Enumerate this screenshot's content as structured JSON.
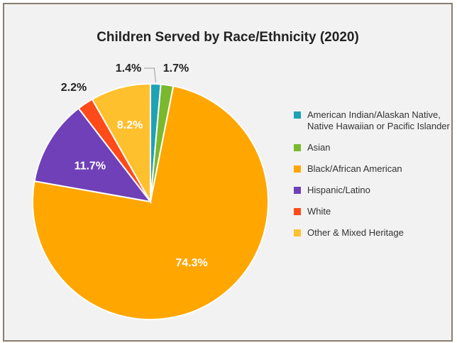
{
  "chart_data": {
    "type": "pie",
    "title": "Children Served by Race/Ethnicity (2020)",
    "slices": [
      {
        "name": "American Indian/Alaskan Native, Native Hawaiian or Pacific Islander",
        "value": 1.4,
        "label": "1.4%",
        "color": "#1ea2b5"
      },
      {
        "name": "Asian",
        "value": 1.7,
        "label": "1.7%",
        "color": "#7ab82e"
      },
      {
        "name": "Black/African American",
        "value": 74.3,
        "label": "74.3%",
        "color": "#ffa600"
      },
      {
        "name": "Hispanic/Latino",
        "value": 11.7,
        "label": "11.7%",
        "color": "#6f40b8"
      },
      {
        "name": "White",
        "value": 2.2,
        "label": "2.2%",
        "color": "#ff4a1a"
      },
      {
        "name": "Other & Mixed Heritage",
        "value": 8.2,
        "label": "8.2%",
        "color": "#ffc02e"
      }
    ],
    "legend": "right"
  }
}
